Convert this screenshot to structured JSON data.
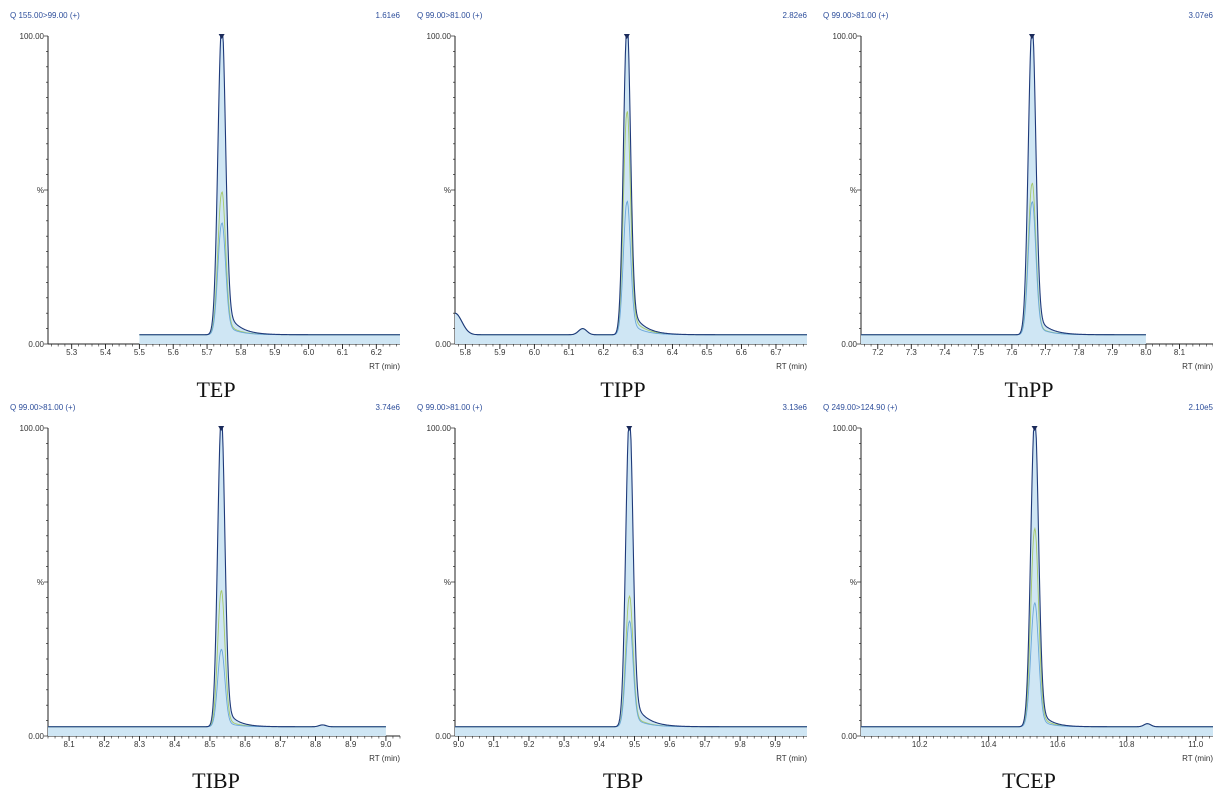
{
  "theme": {
    "header_color": "#2d4e9b",
    "axis_color": "#222222",
    "trace_main": "#1f3a7a",
    "fill": "#cfe6f4",
    "trace_ion2": "#a5c96a",
    "trace_ion3": "#6aa7d8",
    "marker": "#1a2a5a"
  },
  "chart_data": [
    {
      "type": "line",
      "title": "TEP",
      "channel": "Q 155.00>99.00 (+)",
      "intensity": "1.61e6",
      "xlabel": "RT (min)",
      "y_top_label": "100.00",
      "y_mid_label": "%",
      "y_bottom_label": "0.00",
      "xlim": [
        5.23,
        6.27
      ],
      "ylim": [
        0,
        100
      ],
      "ticks": [
        "5.3",
        "5.4",
        "5.5",
        "5.6",
        "5.7",
        "5.8",
        "5.9",
        "6.0",
        "6.1",
        "6.2"
      ],
      "tick_values": [
        5.3,
        5.4,
        5.5,
        5.6,
        5.7,
        5.8,
        5.9,
        6.0,
        6.1,
        6.2
      ],
      "trace_start": 5.5,
      "trace_end": 6.27,
      "baseline": 3,
      "peak_rt": 5.743,
      "peak_width": 0.011,
      "tail": 0.035,
      "tail_amp": 2,
      "series": [
        {
          "peak": 100
        },
        {
          "peak": 46
        },
        {
          "peak": 36
        }
      ],
      "bumps": []
    },
    {
      "type": "line",
      "title": "TIPP",
      "channel": "Q 99.00>81.00 (+)",
      "intensity": "2.82e6",
      "xlabel": "RT (min)",
      "y_top_label": "100.00",
      "y_mid_label": "%",
      "y_bottom_label": "0.00",
      "xlim": [
        5.77,
        6.79
      ],
      "ylim": [
        0,
        100
      ],
      "ticks": [
        "5.8",
        "5.9",
        "6.0",
        "6.1",
        "6.2",
        "6.3",
        "6.4",
        "6.5",
        "6.6",
        "6.7"
      ],
      "tick_values": [
        5.8,
        5.9,
        6.0,
        6.1,
        6.2,
        6.3,
        6.4,
        6.5,
        6.6,
        6.7
      ],
      "trace_start": 5.77,
      "trace_end": 6.79,
      "baseline": 3,
      "peak_rt": 6.268,
      "peak_width": 0.01,
      "tail": 0.035,
      "tail_amp": 2,
      "series": [
        {
          "peak": 100
        },
        {
          "peak": 72
        },
        {
          "peak": 43
        }
      ],
      "bumps": [
        {
          "x": 6.14,
          "h": 2,
          "w": 0.012
        },
        {
          "x": 5.77,
          "h": 7,
          "w": 0.02
        }
      ]
    },
    {
      "type": "line",
      "title": "TnPP",
      "channel": "Q 99.00>81.00 (+)",
      "intensity": "3.07e6",
      "xlabel": "RT (min)",
      "y_top_label": "100.00",
      "y_mid_label": "%",
      "y_bottom_label": "0.00",
      "xlim": [
        7.15,
        8.2
      ],
      "ylim": [
        0,
        100
      ],
      "ticks": [
        "7.2",
        "7.3",
        "7.4",
        "7.5",
        "7.6",
        "7.7",
        "7.8",
        "7.9",
        "8.0",
        "8.1"
      ],
      "tick_values": [
        7.2,
        7.3,
        7.4,
        7.5,
        7.6,
        7.7,
        7.8,
        7.9,
        8.0,
        8.1
      ],
      "trace_start": 7.15,
      "trace_end": 8.0,
      "baseline": 3,
      "peak_rt": 7.66,
      "peak_width": 0.011,
      "tail": 0.035,
      "tail_amp": 1.5,
      "series": [
        {
          "peak": 100
        },
        {
          "peak": 49
        },
        {
          "peak": 43
        }
      ],
      "bumps": []
    },
    {
      "type": "line",
      "title": "TIBP",
      "channel": "Q 99.00>81.00 (+)",
      "intensity": "3.74e6",
      "xlabel": "RT (min)",
      "y_top_label": "100.00",
      "y_mid_label": "%",
      "y_bottom_label": "0.00",
      "xlim": [
        8.04,
        9.04
      ],
      "ylim": [
        0,
        100
      ],
      "ticks": [
        "8.1",
        "8.2",
        "8.3",
        "8.4",
        "8.5",
        "8.6",
        "8.7",
        "8.8",
        "8.9",
        "9.0"
      ],
      "tick_values": [
        8.1,
        8.2,
        8.3,
        8.4,
        8.5,
        8.6,
        8.7,
        8.8,
        8.9,
        9.0
      ],
      "trace_start": 8.04,
      "trace_end": 9.0,
      "baseline": 3,
      "peak_rt": 8.532,
      "peak_width": 0.01,
      "tail": 0.03,
      "tail_amp": 1.5,
      "series": [
        {
          "peak": 100
        },
        {
          "peak": 44
        },
        {
          "peak": 25
        }
      ],
      "bumps": [
        {
          "x": 8.82,
          "h": 0.6,
          "w": 0.01
        }
      ]
    },
    {
      "type": "line",
      "title": "TBP",
      "channel": "Q 99.00>81.00 (+)",
      "intensity": "3.13e6",
      "xlabel": "RT (min)",
      "y_top_label": "100.00",
      "y_mid_label": "%",
      "y_bottom_label": "0.00",
      "xlim": [
        8.99,
        9.99
      ],
      "ylim": [
        0,
        100
      ],
      "ticks": [
        "9.0",
        "9.1",
        "9.2",
        "9.3",
        "9.4",
        "9.5",
        "9.6",
        "9.7",
        "9.8",
        "9.9"
      ],
      "tick_values": [
        9.0,
        9.1,
        9.2,
        9.3,
        9.4,
        9.5,
        9.6,
        9.7,
        9.8,
        9.9
      ],
      "trace_start": 8.99,
      "trace_end": 9.99,
      "baseline": 3,
      "peak_rt": 9.485,
      "peak_width": 0.01,
      "tail": 0.035,
      "tail_amp": 2,
      "series": [
        {
          "peak": 100
        },
        {
          "peak": 42
        },
        {
          "peak": 34
        }
      ],
      "bumps": []
    },
    {
      "type": "line",
      "title": "TCEP",
      "channel": "Q 249.00>124.90 (+)",
      "intensity": "2.10e5",
      "xlabel": "RT (min)",
      "y_top_label": "100.00",
      "y_mid_label": "%",
      "y_bottom_label": "0.00",
      "xlim": [
        10.03,
        11.05
      ],
      "ylim": [
        0,
        100
      ],
      "ticks": [
        "10.2",
        "10.4",
        "10.6",
        "10.8",
        "11.0"
      ],
      "tick_values": [
        10.2,
        10.4,
        10.6,
        10.8,
        11.0
      ],
      "minor_step": 0.02,
      "trace_start": 10.03,
      "trace_end": 11.05,
      "baseline": 3,
      "peak_rt": 10.533,
      "peak_width": 0.011,
      "tail": 0.03,
      "tail_amp": 1.5,
      "series": [
        {
          "peak": 100
        },
        {
          "peak": 64
        },
        {
          "peak": 40
        }
      ],
      "bumps": [
        {
          "x": 10.86,
          "h": 1,
          "w": 0.01
        }
      ]
    }
  ]
}
